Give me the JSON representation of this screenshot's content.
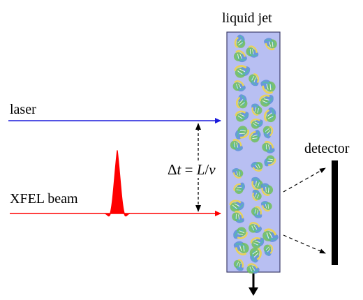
{
  "labels": {
    "liquid_jet": "liquid jet",
    "laser": "laser",
    "xfel_beam": "XFEL beam",
    "detector": "detector"
  },
  "delay_equation": {
    "delta": "Δ",
    "t": "t",
    "eq": " = ",
    "L": "L",
    "slash": "/",
    "v": "v"
  },
  "colors": {
    "laser_beam": "#1a1adb",
    "xfel_beam": "#ff0000",
    "jet_fill": "#b8bff2",
    "jet_border": "#3d3d6b",
    "detector": "#000000",
    "protein_blue": "#5b8fd9",
    "protein_green": "#6fbf5a",
    "protein_yellow": "#e8d35a",
    "protein_teal": "#58b8b0"
  },
  "icons": {
    "flow_direction": "arrow-down-icon",
    "sample": "protein-crystal-icon"
  }
}
